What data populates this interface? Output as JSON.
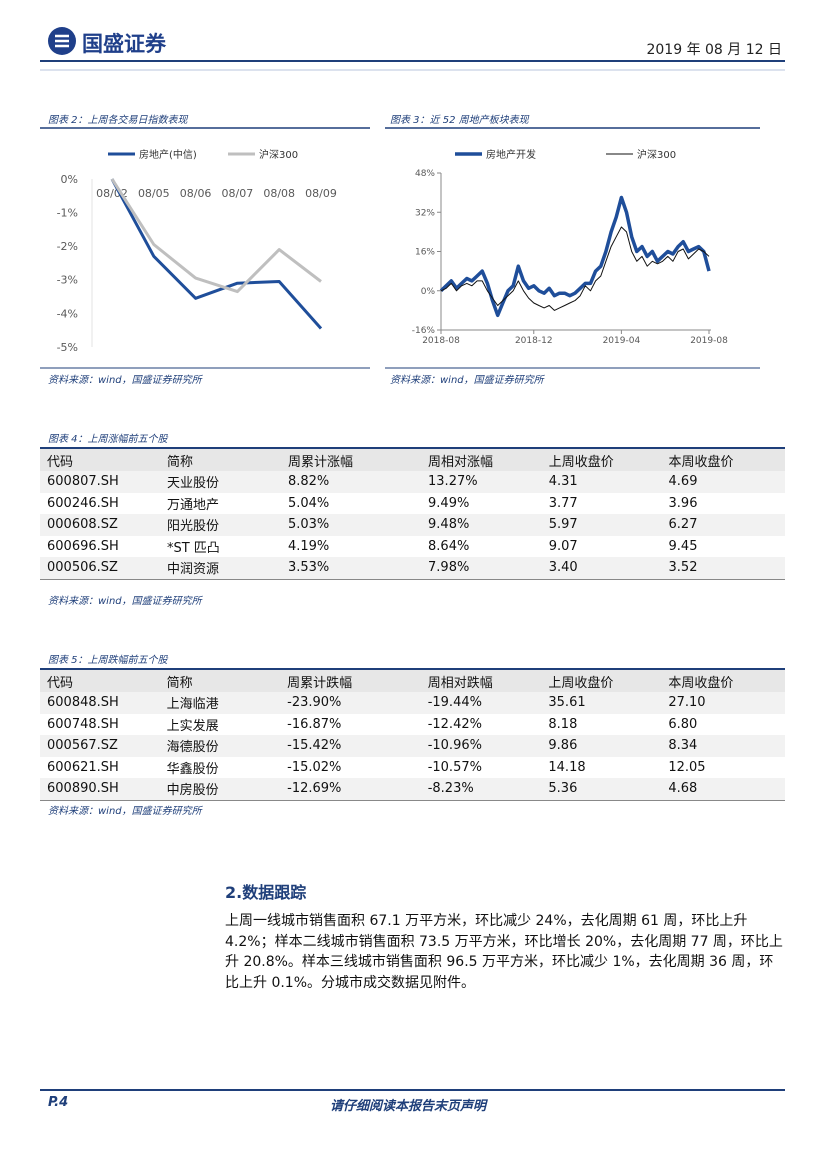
{
  "header": {
    "logo": "国盛证券",
    "date": "2019 年 08 月 12 日"
  },
  "chart_data": [
    {
      "type": "line",
      "title": "图表 2：上周各交易日指数表现",
      "source": "资料来源：wind，国盛证券研究所",
      "categories": [
        "08/02",
        "08/05",
        "08/06",
        "08/07",
        "08/08",
        "08/09"
      ],
      "series": [
        {
          "name": "房地产(中信)",
          "color": "#1f4e9a",
          "values": [
            0,
            -2.3,
            -3.55,
            -3.1,
            -3.05,
            -4.45
          ]
        },
        {
          "name": "沪深300",
          "color": "#bfbfbf",
          "values": [
            0,
            -1.95,
            -2.95,
            -3.35,
            -2.1,
            -3.05
          ]
        }
      ],
      "ylim": [
        -5,
        0
      ],
      "yticks": [
        {
          "value": 0,
          "label": "0%"
        },
        {
          "value": -1,
          "label": "-1%"
        },
        {
          "value": -2,
          "label": "-2%"
        },
        {
          "value": -3,
          "label": "-3%"
        },
        {
          "value": -4,
          "label": "-4%"
        },
        {
          "value": -5,
          "label": "-5%"
        }
      ]
    },
    {
      "type": "line",
      "title": "图表 3：近 52 周地产板块表现",
      "source": "资料来源：wind，国盛证券研究所",
      "categories": [
        "2018-08",
        null,
        null,
        null,
        null,
        null,
        null,
        null,
        null,
        null,
        null,
        null,
        null,
        null,
        null,
        null,
        null,
        null,
        "2018-12",
        null,
        null,
        null,
        null,
        null,
        null,
        null,
        null,
        null,
        null,
        null,
        null,
        null,
        null,
        null,
        null,
        "2019-04",
        null,
        null,
        null,
        null,
        null,
        null,
        null,
        null,
        null,
        null,
        null,
        null,
        null,
        null,
        null,
        null,
        "2019-08"
      ],
      "series": [
        {
          "name": "房地产开发",
          "color": "#1f4e9a",
          "values": [
            0,
            2,
            4,
            1,
            3,
            5,
            4,
            6,
            8,
            3,
            -4,
            -10,
            -5,
            0,
            2,
            10,
            4,
            1,
            2,
            0,
            -1,
            1,
            -2,
            -1,
            -1,
            -2,
            -1,
            1,
            3,
            3,
            8,
            10,
            16,
            24,
            30,
            38,
            32,
            22,
            16,
            18,
            14,
            16,
            12,
            14,
            16,
            15,
            18,
            20,
            16,
            17,
            18,
            16,
            8
          ]
        },
        {
          "name": "沪深300",
          "color": "#111111",
          "values": [
            0,
            1,
            3,
            0,
            2,
            3,
            2,
            4,
            4,
            0,
            -3,
            -6,
            -4,
            -2,
            0,
            4,
            0,
            -3,
            -5,
            -6,
            -7,
            -6,
            -8,
            -7,
            -6,
            -5,
            -4,
            -2,
            2,
            0,
            4,
            6,
            12,
            18,
            22,
            26,
            24,
            16,
            12,
            14,
            10,
            12,
            11,
            12,
            14,
            12,
            16,
            17,
            13,
            15,
            17,
            16,
            14
          ]
        }
      ],
      "ylim": [
        -16,
        48
      ],
      "yticks": [
        {
          "value": 48,
          "label": "48%"
        },
        {
          "value": 32,
          "label": "32%"
        },
        {
          "value": 16,
          "label": "16%"
        },
        {
          "value": 0,
          "label": "0%"
        },
        {
          "value": -16,
          "label": "-16%"
        }
      ]
    }
  ],
  "tables": [
    {
      "title": "图表 4：上周涨幅前五个股",
      "source": "资料来源：wind，国盛证券研究所",
      "columns": [
        "代码",
        "简称",
        "周累计涨幅",
        "周相对涨幅",
        "上周收盘价",
        "本周收盘价"
      ],
      "rows": [
        [
          "600807.SH",
          "天业股份",
          "8.82%",
          "13.27%",
          "4.31",
          "4.69"
        ],
        [
          "600246.SH",
          "万通地产",
          "5.04%",
          "9.49%",
          "3.77",
          "3.96"
        ],
        [
          "000608.SZ",
          "阳光股份",
          "5.03%",
          "9.48%",
          "5.97",
          "6.27"
        ],
        [
          "600696.SH",
          "*ST 匹凸",
          "4.19%",
          "8.64%",
          "9.07",
          "9.45"
        ],
        [
          "000506.SZ",
          "中润资源",
          "3.53%",
          "7.98%",
          "3.40",
          "3.52"
        ]
      ]
    },
    {
      "title": "图表 5：上周跌幅前五个股",
      "source": "资料来源：wind，国盛证券研究所",
      "columns": [
        "代码",
        "简称",
        "周累计跌幅",
        "周相对跌幅",
        "上周收盘价",
        "本周收盘价"
      ],
      "rows": [
        [
          "600848.SH",
          "上海临港",
          "-23.90%",
          "-19.44%",
          "35.61",
          "27.10"
        ],
        [
          "600748.SH",
          "上实发展",
          "-16.87%",
          "-12.42%",
          "8.18",
          "6.80"
        ],
        [
          "000567.SZ",
          "海德股份",
          "-15.42%",
          "-10.96%",
          "9.86",
          "8.34"
        ],
        [
          "600621.SH",
          "华鑫股份",
          "-15.02%",
          "-10.57%",
          "14.18",
          "12.05"
        ],
        [
          "600890.SH",
          "中房股份",
          "-12.69%",
          "-8.23%",
          "5.36",
          "4.68"
        ]
      ]
    }
  ],
  "section": {
    "title": "2.数据跟踪",
    "text": "上周一线城市销售面积 67.1 万平方米，环比减少 24%，去化周期 61 周，环比上升 4.2%；样本二线城市销售面积 73.5 万平方米，环比增长 20%，去化周期 77 周，环比上升 20.8%。样本三线城市销售面积 96.5 万平方米，环比减少 1%，去化周期 36 周，环比上升 0.1%。分城市成交数据见附件。"
  },
  "footer": {
    "page": "P.4",
    "note": "请仔细阅读本报告末页声明"
  }
}
